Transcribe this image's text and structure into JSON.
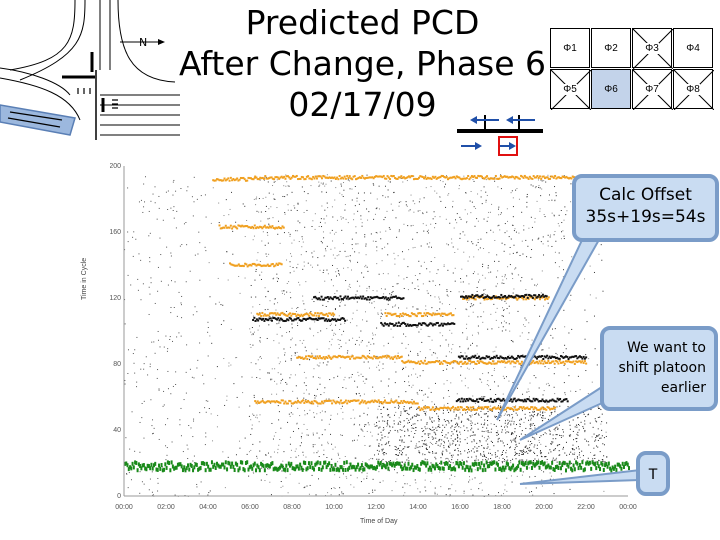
{
  "title": {
    "line1": "Predicted PCD",
    "line2": "After Change, Phase 6",
    "line3": "02/17/09"
  },
  "intersection": {
    "north_label": "N"
  },
  "phase_grid": {
    "top_row": [
      "Φ1",
      "Φ2",
      "Φ3",
      "Φ4"
    ],
    "bottom_row": [
      "Φ5",
      "Φ6",
      "Φ7",
      "Φ8"
    ],
    "highlight_color": "#c3d3ea"
  },
  "callouts": {
    "offset_text": "Calc Offset 35s+19s=54s",
    "shift_text": "We want to shift platoon earlier",
    "t_label": "T"
  },
  "chart_data": {
    "type": "scatter",
    "title": "",
    "xlabel": "Time of Day",
    "ylabel": "Time in Cycle",
    "x_ticks": [
      "00:00",
      "02:00",
      "04:00",
      "06:00",
      "08:00",
      "10:00",
      "12:00",
      "14:00",
      "16:00",
      "18:00",
      "20:00",
      "22:00",
      "00:00"
    ],
    "y_ticks": [
      "0",
      "40",
      "80",
      "120",
      "160",
      "200"
    ],
    "ylim": [
      0,
      200
    ],
    "xlim_hours": [
      0,
      24
    ],
    "grid": false,
    "series": [
      {
        "color": "#f0a020",
        "segments": [
          {
            "start": 4.2,
            "end": 6.2,
            "y": 192
          },
          {
            "start": 6.2,
            "end": 22.8,
            "y": 193
          },
          {
            "start": 4.5,
            "end": 7.6,
            "y": 163
          },
          {
            "start": 5.0,
            "end": 7.5,
            "y": 140
          },
          {
            "start": 16.1,
            "end": 20.2,
            "y": 120
          },
          {
            "start": 6.3,
            "end": 10.0,
            "y": 110
          },
          {
            "start": 12.4,
            "end": 15.7,
            "y": 110
          },
          {
            "start": 8.2,
            "end": 13.2,
            "y": 84
          },
          {
            "start": 13.2,
            "end": 22.0,
            "y": 81
          },
          {
            "start": 6.2,
            "end": 14.0,
            "y": 57
          },
          {
            "start": 14.0,
            "end": 20.5,
            "y": 53
          }
        ]
      },
      {
        "color": "#111111",
        "segments": [
          {
            "start": 9.0,
            "end": 13.3,
            "y": 120
          },
          {
            "start": 16.0,
            "end": 20.1,
            "y": 121
          },
          {
            "start": 6.1,
            "end": 10.5,
            "y": 107
          },
          {
            "start": 12.2,
            "end": 15.7,
            "y": 104
          },
          {
            "start": 15.9,
            "end": 22.0,
            "y": 84
          },
          {
            "start": 15.8,
            "end": 21.1,
            "y": 58
          }
        ]
      },
      {
        "color": "#1a8a1a",
        "segments": [
          {
            "start": 0.0,
            "end": 24.0,
            "y": 18
          }
        ]
      }
    ]
  }
}
